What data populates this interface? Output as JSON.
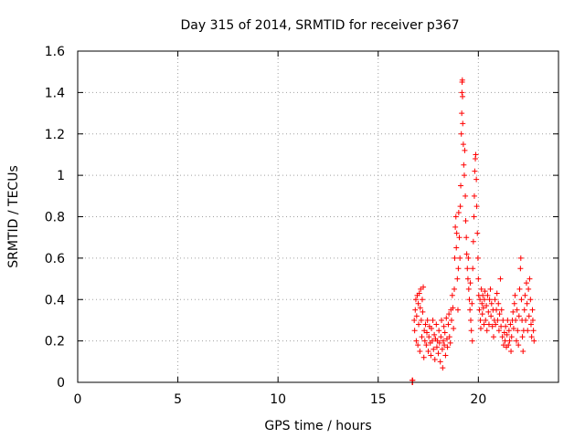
{
  "chart_data": {
    "type": "scatter",
    "title": "Day 315 of 2014, SRMTID for receiver p367",
    "xlabel": "GPS time / hours",
    "ylabel": "SRMTID / TECUs",
    "xlim": [
      0,
      24
    ],
    "ylim": [
      0,
      1.6
    ],
    "grid": true,
    "marker": "+",
    "color": "#ff0000",
    "xticks": [
      0,
      5,
      10,
      15,
      20
    ],
    "xtick_labels": [
      "0",
      "5",
      "10",
      "15",
      "20"
    ],
    "yticks": [
      0,
      0.2,
      0.4,
      0.6,
      0.8,
      1,
      1.2,
      1.4,
      1.6
    ],
    "ytick_labels": [
      "0",
      "0.2",
      "0.4",
      "0.6",
      "0.8",
      "1",
      "1.2",
      "1.4",
      "1.6"
    ],
    "series": [
      {
        "name": "SRMTID",
        "points": [
          [
            16.7,
            0.0
          ],
          [
            16.7,
            0.01
          ],
          [
            16.72,
            0.0
          ],
          [
            16.72,
            0.01
          ],
          [
            16.8,
            0.3
          ],
          [
            16.82,
            0.25
          ],
          [
            16.85,
            0.35
          ],
          [
            16.88,
            0.4
          ],
          [
            16.9,
            0.2
          ],
          [
            16.92,
            0.32
          ],
          [
            16.95,
            0.42
          ],
          [
            16.98,
            0.18
          ],
          [
            17.0,
            0.38
          ],
          [
            17.02,
            0.28
          ],
          [
            17.05,
            0.43
          ],
          [
            17.08,
            0.15
          ],
          [
            17.1,
            0.36
          ],
          [
            17.12,
            0.45
          ],
          [
            17.15,
            0.3
          ],
          [
            17.18,
            0.22
          ],
          [
            17.2,
            0.4
          ],
          [
            17.22,
            0.34
          ],
          [
            17.25,
            0.46
          ],
          [
            17.28,
            0.12
          ],
          [
            17.3,
            0.25
          ],
          [
            17.33,
            0.2
          ],
          [
            17.36,
            0.28
          ],
          [
            17.4,
            0.18
          ],
          [
            17.43,
            0.24
          ],
          [
            17.46,
            0.3
          ],
          [
            17.5,
            0.15
          ],
          [
            17.53,
            0.22
          ],
          [
            17.56,
            0.27
          ],
          [
            17.6,
            0.19
          ],
          [
            17.63,
            0.13
          ],
          [
            17.66,
            0.26
          ],
          [
            17.7,
            0.2
          ],
          [
            17.73,
            0.3
          ],
          [
            17.76,
            0.16
          ],
          [
            17.8,
            0.23
          ],
          [
            17.83,
            0.11
          ],
          [
            17.86,
            0.21
          ],
          [
            17.9,
            0.28
          ],
          [
            17.93,
            0.17
          ],
          [
            17.96,
            0.2
          ],
          [
            18.0,
            0.14
          ],
          [
            18.03,
            0.25
          ],
          [
            18.06,
            0.19
          ],
          [
            18.1,
            0.1
          ],
          [
            18.13,
            0.22
          ],
          [
            18.16,
            0.3
          ],
          [
            18.2,
            0.16
          ],
          [
            18.22,
            0.07
          ],
          [
            18.25,
            0.2
          ],
          [
            18.28,
            0.27
          ],
          [
            18.3,
            0.18
          ],
          [
            18.33,
            0.24
          ],
          [
            18.36,
            0.13
          ],
          [
            18.4,
            0.31
          ],
          [
            18.43,
            0.21
          ],
          [
            18.46,
            0.17
          ],
          [
            18.5,
            0.28
          ],
          [
            18.53,
            0.33
          ],
          [
            18.56,
            0.22
          ],
          [
            18.6,
            0.19
          ],
          [
            18.63,
            0.35
          ],
          [
            18.66,
            0.3
          ],
          [
            18.7,
            0.42
          ],
          [
            18.73,
            0.36
          ],
          [
            18.76,
            0.26
          ],
          [
            18.8,
            0.45
          ],
          [
            18.82,
            0.6
          ],
          [
            18.85,
            0.75
          ],
          [
            18.88,
            0.8
          ],
          [
            18.9,
            0.65
          ],
          [
            18.92,
            0.72
          ],
          [
            18.95,
            0.5
          ],
          [
            18.98,
            0.35
          ],
          [
            19.0,
            0.55
          ],
          [
            19.02,
            0.82
          ],
          [
            19.05,
            0.7
          ],
          [
            19.08,
            0.6
          ],
          [
            19.1,
            0.85
          ],
          [
            19.12,
            0.95
          ],
          [
            19.15,
            1.2
          ],
          [
            19.17,
            1.3
          ],
          [
            19.18,
            1.4
          ],
          [
            19.19,
            1.45
          ],
          [
            19.2,
            1.46
          ],
          [
            19.21,
            1.38
          ],
          [
            19.22,
            1.25
          ],
          [
            19.25,
            1.15
          ],
          [
            19.27,
            1.05
          ],
          [
            19.3,
            1.0
          ],
          [
            19.32,
            1.12
          ],
          [
            19.35,
            0.9
          ],
          [
            19.37,
            0.78
          ],
          [
            19.4,
            0.7
          ],
          [
            19.42,
            0.62
          ],
          [
            19.45,
            0.55
          ],
          [
            19.48,
            0.5
          ],
          [
            19.5,
            0.6
          ],
          [
            19.52,
            0.45
          ],
          [
            19.55,
            0.4
          ],
          [
            19.58,
            0.35
          ],
          [
            19.6,
            0.48
          ],
          [
            19.62,
            0.3
          ],
          [
            19.65,
            0.25
          ],
          [
            19.68,
            0.38
          ],
          [
            19.7,
            0.2
          ],
          [
            19.72,
            0.55
          ],
          [
            19.75,
            0.68
          ],
          [
            19.78,
            0.8
          ],
          [
            19.8,
            0.9
          ],
          [
            19.82,
            1.02
          ],
          [
            19.85,
            1.08
          ],
          [
            19.87,
            1.1
          ],
          [
            19.9,
            0.98
          ],
          [
            19.92,
            0.85
          ],
          [
            19.95,
            0.72
          ],
          [
            19.98,
            0.6
          ],
          [
            20.0,
            0.5
          ],
          [
            20.02,
            0.42
          ],
          [
            20.05,
            0.35
          ],
          [
            20.08,
            0.4
          ],
          [
            20.1,
            0.3
          ],
          [
            20.12,
            0.26
          ],
          [
            20.15,
            0.45
          ],
          [
            20.18,
            0.38
          ],
          [
            20.2,
            0.33
          ],
          [
            20.22,
            0.42
          ],
          [
            20.25,
            0.36
          ],
          [
            20.28,
            0.28
          ],
          [
            20.3,
            0.4
          ],
          [
            20.33,
            0.44
          ],
          [
            20.36,
            0.3
          ],
          [
            20.4,
            0.37
          ],
          [
            20.43,
            0.25
          ],
          [
            20.46,
            0.42
          ],
          [
            20.5,
            0.34
          ],
          [
            20.53,
            0.28
          ],
          [
            20.56,
            0.4
          ],
          [
            20.6,
            0.45
          ],
          [
            20.63,
            0.32
          ],
          [
            20.66,
            0.38
          ],
          [
            20.7,
            0.27
          ],
          [
            20.73,
            0.35
          ],
          [
            20.76,
            0.22
          ],
          [
            20.8,
            0.3
          ],
          [
            20.83,
            0.4
          ],
          [
            20.86,
            0.28
          ],
          [
            20.9,
            0.35
          ],
          [
            20.93,
            0.43
          ],
          [
            20.96,
            0.3
          ],
          [
            21.0,
            0.38
          ],
          [
            21.03,
            0.25
          ],
          [
            21.06,
            0.33
          ],
          [
            21.1,
            0.5
          ],
          [
            21.13,
            0.27
          ],
          [
            21.16,
            0.35
          ],
          [
            21.2,
            0.22
          ],
          [
            21.23,
            0.3
          ],
          [
            21.26,
            0.18
          ],
          [
            21.3,
            0.24
          ],
          [
            21.33,
            0.2
          ],
          [
            21.36,
            0.27
          ],
          [
            21.4,
            0.17
          ],
          [
            21.43,
            0.23
          ],
          [
            21.46,
            0.3
          ],
          [
            21.5,
            0.18
          ],
          [
            21.53,
            0.25
          ],
          [
            21.56,
            0.2
          ],
          [
            21.6,
            0.28
          ],
          [
            21.63,
            0.15
          ],
          [
            21.66,
            0.22
          ],
          [
            21.7,
            0.3
          ],
          [
            21.73,
            0.34
          ],
          [
            21.76,
            0.26
          ],
          [
            21.8,
            0.38
          ],
          [
            21.83,
            0.42
          ],
          [
            21.86,
            0.3
          ],
          [
            21.9,
            0.2
          ],
          [
            21.93,
            0.35
          ],
          [
            21.96,
            0.25
          ],
          [
            22.0,
            0.18
          ],
          [
            22.03,
            0.32
          ],
          [
            22.06,
            0.45
          ],
          [
            22.1,
            0.55
          ],
          [
            22.12,
            0.6
          ],
          [
            22.15,
            0.4
          ],
          [
            22.18,
            0.3
          ],
          [
            22.2,
            0.22
          ],
          [
            22.23,
            0.15
          ],
          [
            22.26,
            0.25
          ],
          [
            22.3,
            0.35
          ],
          [
            22.33,
            0.42
          ],
          [
            22.36,
            0.3
          ],
          [
            22.4,
            0.48
          ],
          [
            22.43,
            0.38
          ],
          [
            22.46,
            0.25
          ],
          [
            22.5,
            0.45
          ],
          [
            22.53,
            0.32
          ],
          [
            22.56,
            0.5
          ],
          [
            22.6,
            0.4
          ],
          [
            22.63,
            0.28
          ],
          [
            22.66,
            0.22
          ],
          [
            22.7,
            0.35
          ],
          [
            22.72,
            0.3
          ],
          [
            22.75,
            0.25
          ],
          [
            22.78,
            0.2
          ]
        ]
      }
    ]
  }
}
